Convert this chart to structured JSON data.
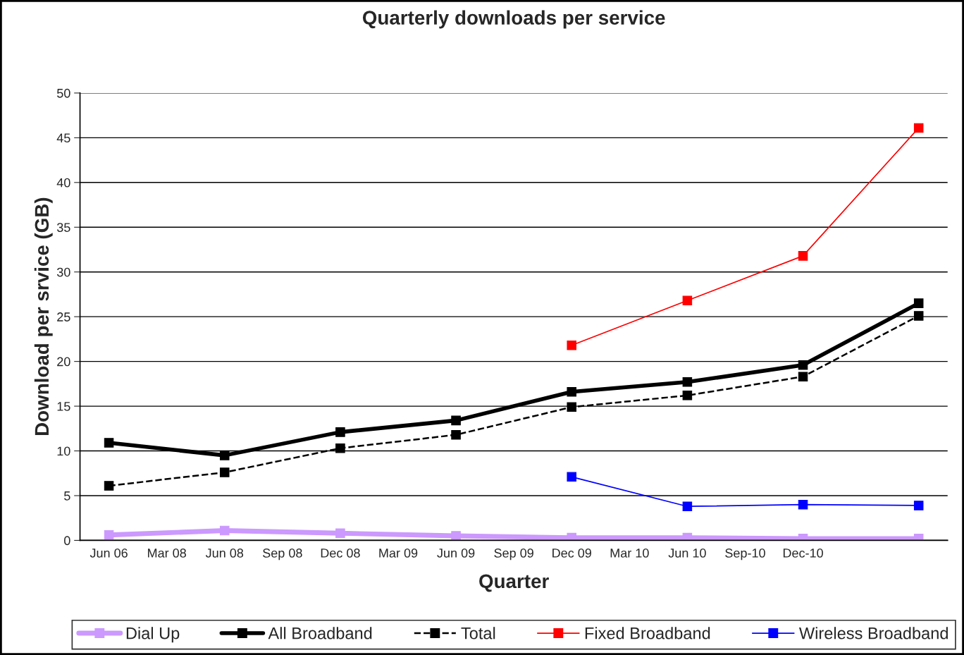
{
  "chart_data": {
    "type": "line",
    "title": "Quarterly downloads per service",
    "xlabel": "Quarter",
    "ylabel": "Download per srvice (GB)",
    "categories": [
      "Jun 06",
      "Mar 08",
      "Jun 08",
      "Sep 08",
      "Dec 08",
      "Mar 09",
      "Jun 09",
      "Sep 09",
      "Dec 09",
      "Mar 10",
      "Jun 10",
      "Sep-10",
      "Dec-10",
      null,
      null
    ],
    "series": [
      {
        "name": "Dial Up",
        "color": "#cc99ff",
        "values": [
          0.6,
          null,
          1.1,
          null,
          0.8,
          null,
          0.5,
          null,
          0.3,
          null,
          0.3,
          null,
          0.2,
          null,
          0.2
        ]
      },
      {
        "name": "All Broadband",
        "color": "#000000",
        "values": [
          10.9,
          null,
          9.5,
          null,
          12.1,
          null,
          13.4,
          null,
          16.6,
          null,
          17.7,
          null,
          19.6,
          null,
          26.5
        ]
      },
      {
        "name": "Total",
        "color": "#000000",
        "line_style": "dashed",
        "values": [
          6.1,
          null,
          7.6,
          null,
          10.3,
          null,
          11.8,
          null,
          14.9,
          null,
          16.2,
          null,
          18.3,
          null,
          25.1
        ]
      },
      {
        "name": "Fixed Broadband",
        "color": "#ff0000",
        "values": [
          null,
          null,
          null,
          null,
          null,
          null,
          null,
          null,
          21.8,
          null,
          26.8,
          null,
          31.8,
          null,
          46.1
        ]
      },
      {
        "name": "Wireless Broadband",
        "color": "#0000ff",
        "values": [
          null,
          null,
          null,
          null,
          null,
          null,
          null,
          null,
          7.1,
          null,
          3.8,
          null,
          4.0,
          null,
          3.9
        ]
      }
    ],
    "ylim": [
      0,
      50
    ],
    "yticks": [
      0,
      5,
      10,
      15,
      20,
      25,
      30,
      35,
      40,
      45,
      50
    ],
    "grid": "y",
    "legend": "bottom",
    "marker": "square",
    "line_style": "solid"
  }
}
